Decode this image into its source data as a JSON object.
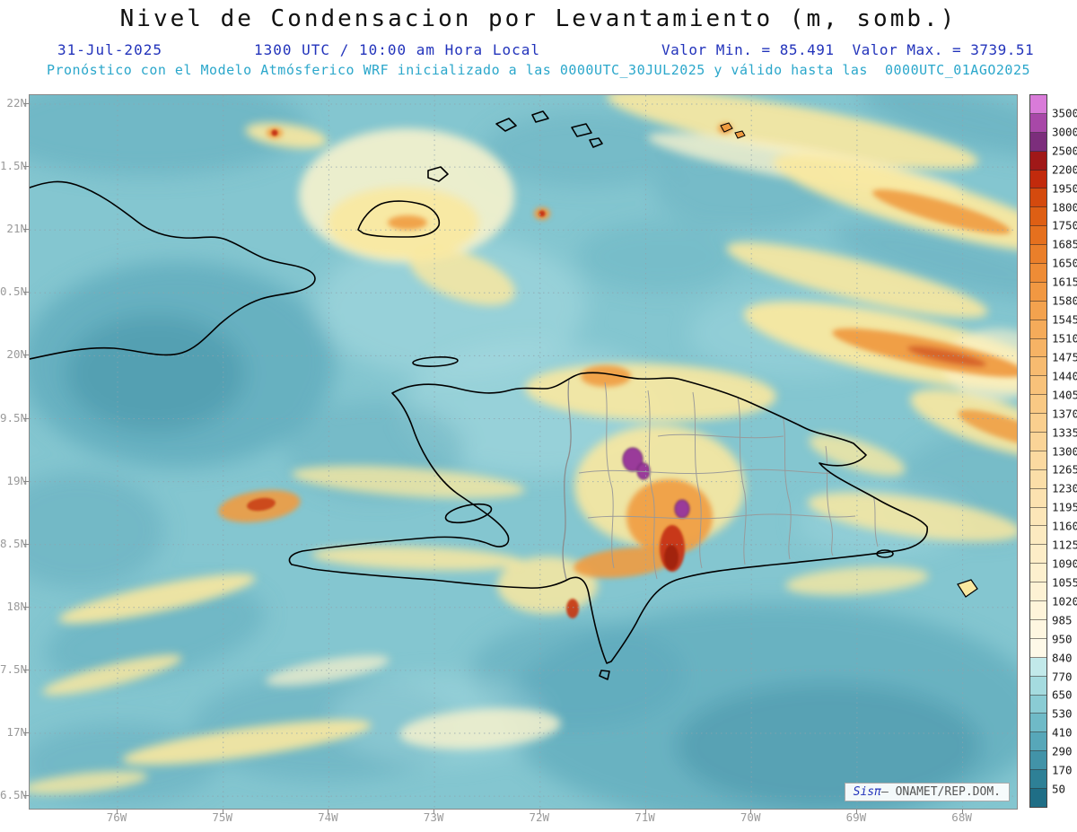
{
  "header": {
    "title": "Nivel de Condensacion por Levantamiento (m, somb.)",
    "date": "31-Jul-2025",
    "time": "1300 UTC / 10:00 am Hora Local",
    "valor_min": "Valor Min. = 85.491",
    "valor_max": "Valor Max. = 3739.51",
    "forecast_line": "Pronóstico con el Modelo Atmósferico WRF inicializado a las 0000UTC_30JUL2025 y válido hasta las  0000UTC_01AGO2025"
  },
  "axes": {
    "lat_labels": [
      "22N",
      "1.5N",
      "21N",
      "0.5N",
      "20N",
      "9.5N",
      "19N",
      "8.5N",
      "18N",
      "7.5N",
      "17N",
      "6.5N"
    ],
    "lon_labels": [
      "76W",
      "75W",
      "74W",
      "73W",
      "72W",
      "71W",
      "70W",
      "69W",
      "68W"
    ]
  },
  "colorbar": {
    "labels": [
      "3500",
      "3000",
      "2500",
      "2200",
      "1950",
      "1800",
      "1750",
      "1685",
      "1650",
      "1615",
      "1580",
      "1545",
      "1510",
      "1475",
      "1440",
      "1405",
      "1370",
      "1335",
      "1300",
      "1265",
      "1230",
      "1195",
      "1160",
      "1125",
      "1090",
      "1055",
      "1020",
      "985",
      "950",
      "840",
      "770",
      "650",
      "530",
      "410",
      "290",
      "170",
      "50"
    ],
    "colors": [
      "#D97BD9",
      "#A848A8",
      "#7C2E7C",
      "#A01818",
      "#C22A0C",
      "#D44A0E",
      "#DE5F14",
      "#E5701E",
      "#EA7F2A",
      "#EE8C36",
      "#F19842",
      "#F3A24E",
      "#F5AB5A",
      "#F6B365",
      "#F7BB70",
      "#F8C27A",
      "#F9C984",
      "#FACF8E",
      "#FAD497",
      "#FBD9A0",
      "#FBDEA8",
      "#FCE2B0",
      "#FCE6B8",
      "#FCEAC0",
      "#FDEDC7",
      "#FDF0CE",
      "#FDF2D4",
      "#FEF4DA",
      "#FEF6E0",
      "#FEF9E8",
      "#C2E9EA",
      "#A5DBDF",
      "#8ACCD4",
      "#6FBAC7",
      "#57A7B9",
      "#4293A8",
      "#2E8096",
      "#1F6E86"
    ]
  },
  "watermark": {
    "brand": "Sisπ",
    "text": "– ONAMET/REP.DOM."
  },
  "colors": {
    "sea_base": "#84C6D0",
    "sea_light": "#A9DCE2",
    "sea_dark": "#5EA9BB",
    "sea_deep": "#4895A9",
    "band_yellow": "#F9E8A0",
    "band_cream": "#FDF4CC",
    "band_orange": "#EF9B40",
    "band_red": "#C53413",
    "band_darkred": "#9E1F0A",
    "band_purple": "#9A3B9A",
    "coast": "#000000",
    "admin": "#999999",
    "grid": "#8FA3AD",
    "title_blue": "#2233BB",
    "subtitle_teal": "#2BA7CB"
  }
}
